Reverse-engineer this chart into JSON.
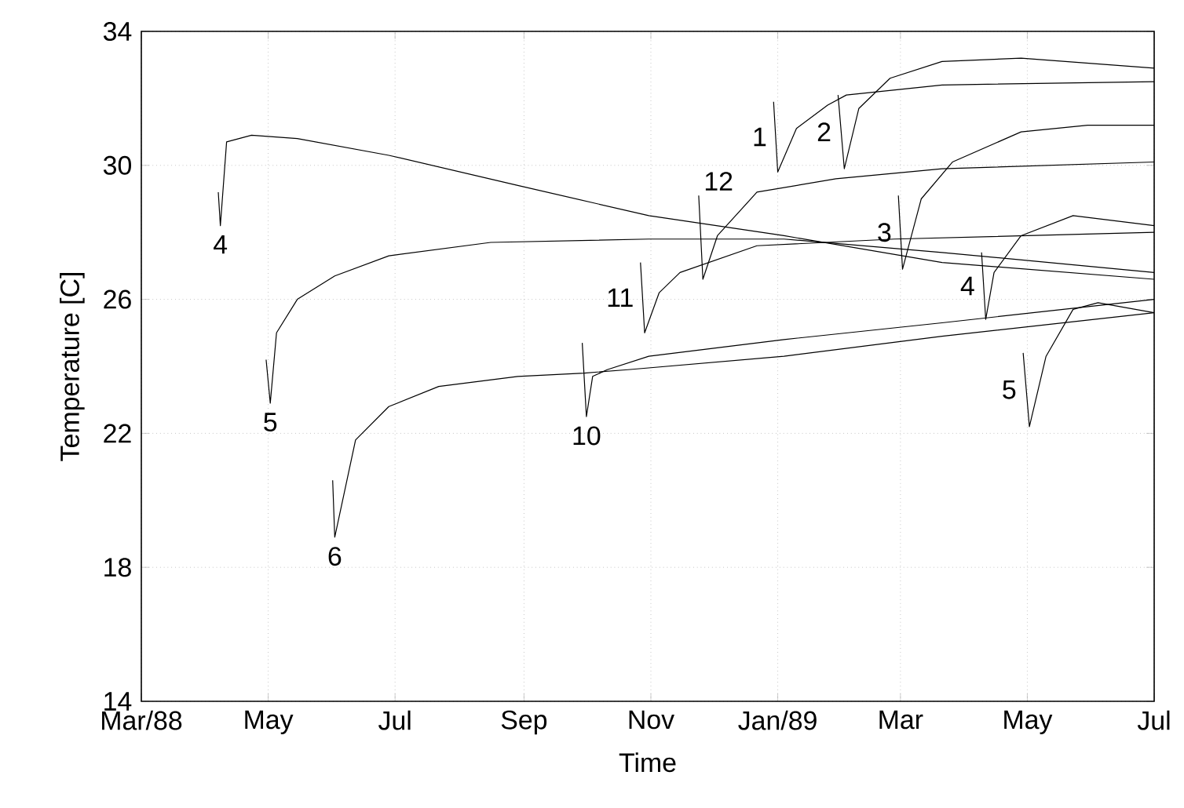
{
  "chart_data": {
    "type": "line",
    "xlabel": "Time",
    "ylabel": "Temperature [C]",
    "xlim": [
      "1988-03-01",
      "1989-07-01"
    ],
    "xticks": [
      {
        "value": "1988-03-01",
        "label": "Mar/88"
      },
      {
        "value": "1988-05-01",
        "label": "May"
      },
      {
        "value": "1988-07-01",
        "label": "Jul"
      },
      {
        "value": "1988-09-01",
        "label": "Sep"
      },
      {
        "value": "1988-11-01",
        "label": "Nov"
      },
      {
        "value": "1989-01-01",
        "label": "Jan/89"
      },
      {
        "value": "1989-03-01",
        "label": "Mar"
      },
      {
        "value": "1989-05-01",
        "label": "May"
      },
      {
        "value": "1989-07-01",
        "label": "Jul"
      }
    ],
    "ylim": [
      14,
      34
    ],
    "yticks": [
      14,
      18,
      22,
      26,
      30,
      34
    ],
    "grid": true,
    "line_style": "solid",
    "series": [
      {
        "name": "4",
        "color": "#000000",
        "x": [
          "1988-04-07",
          "1988-04-08",
          "1988-04-11",
          "1988-04-23",
          "1988-05-15",
          "1988-06-28",
          "1988-08-29",
          "1988-10-31",
          "1989-01-04",
          "1989-03-21",
          "1989-07-01"
        ],
        "values": [
          29.2,
          28.2,
          30.7,
          30.9,
          30.8,
          30.3,
          29.4,
          28.5,
          27.9,
          27.1,
          26.6
        ]
      },
      {
        "name": "5",
        "color": "#000000",
        "x": [
          "1988-04-30",
          "1988-05-02",
          "1988-05-05",
          "1988-05-15",
          "1988-06-02",
          "1988-06-28",
          "1988-08-16",
          "1988-10-31",
          "1989-01-04",
          "1989-03-21",
          "1989-07-01"
        ],
        "values": [
          24.2,
          22.9,
          25.0,
          26.0,
          26.7,
          27.3,
          27.7,
          27.8,
          27.8,
          27.4,
          26.8
        ]
      },
      {
        "name": "6",
        "color": "#000000",
        "x": [
          "1988-06-01",
          "1988-06-02",
          "1988-06-12",
          "1988-06-28",
          "1988-07-22",
          "1988-08-29",
          "1988-09-30",
          "1988-10-21",
          "1989-01-04",
          "1989-03-21",
          "1989-07-01"
        ],
        "values": [
          20.6,
          18.9,
          21.8,
          22.8,
          23.4,
          23.7,
          23.8,
          23.9,
          24.3,
          24.9,
          25.6
        ]
      },
      {
        "name": "10",
        "color": "#000000",
        "x": [
          "1988-09-29",
          "1988-10-01",
          "1988-10-04",
          "1988-10-11",
          "1988-10-31",
          "1989-01-04",
          "1989-03-21",
          "1989-07-01"
        ],
        "values": [
          24.7,
          22.5,
          23.7,
          23.9,
          24.3,
          24.8,
          25.3,
          26.0
        ]
      },
      {
        "name": "11",
        "color": "#000000",
        "x": [
          "1988-10-27",
          "1988-10-29",
          "1988-11-05",
          "1988-11-15",
          "1988-12-22",
          "1989-02-26",
          "1989-07-01"
        ],
        "values": [
          27.1,
          25.0,
          26.2,
          26.8,
          27.6,
          27.8,
          28.0
        ]
      },
      {
        "name": "12",
        "color": "#000000",
        "x": [
          "1988-11-24",
          "1988-11-26",
          "1988-12-03",
          "1988-12-22",
          "1989-01-29",
          "1989-03-21",
          "1989-07-01"
        ],
        "values": [
          29.1,
          26.6,
          27.9,
          29.2,
          29.6,
          29.9,
          30.1
        ]
      },
      {
        "name": "1",
        "color": "#000000",
        "x": [
          "1988-12-30",
          "1989-01-01",
          "1989-01-10",
          "1989-01-25",
          "1989-02-03",
          "1989-03-21",
          "1989-07-01"
        ],
        "values": [
          31.9,
          29.8,
          31.1,
          31.8,
          32.1,
          32.4,
          32.5
        ]
      },
      {
        "name": "2",
        "color": "#000000",
        "x": [
          "1989-01-30",
          "1989-02-02",
          "1989-02-09",
          "1989-02-24",
          "1989-03-21",
          "1989-04-28",
          "1989-07-01"
        ],
        "values": [
          32.1,
          29.9,
          31.7,
          32.6,
          33.1,
          33.2,
          32.9
        ]
      },
      {
        "name": "3",
        "color": "#000000",
        "x": [
          "1989-02-28",
          "1989-03-02",
          "1989-03-11",
          "1989-03-26",
          "1989-04-28",
          "1989-05-30",
          "1989-07-01"
        ],
        "values": [
          29.1,
          26.9,
          29.0,
          30.1,
          31.0,
          31.2,
          31.2
        ]
      },
      {
        "name": "4",
        "color": "#000000",
        "x": [
          "1989-04-09",
          "1989-04-11",
          "1989-04-15",
          "1989-04-28",
          "1989-05-23",
          "1989-07-01"
        ],
        "values": [
          27.4,
          25.4,
          26.8,
          27.9,
          28.5,
          28.2
        ]
      },
      {
        "name": "5",
        "color": "#000000",
        "x": [
          "1989-04-29",
          "1989-05-02",
          "1989-05-10",
          "1989-05-23",
          "1989-06-04",
          "1989-07-01"
        ],
        "values": [
          24.4,
          22.2,
          24.3,
          25.7,
          25.9,
          25.6
        ]
      }
    ]
  }
}
